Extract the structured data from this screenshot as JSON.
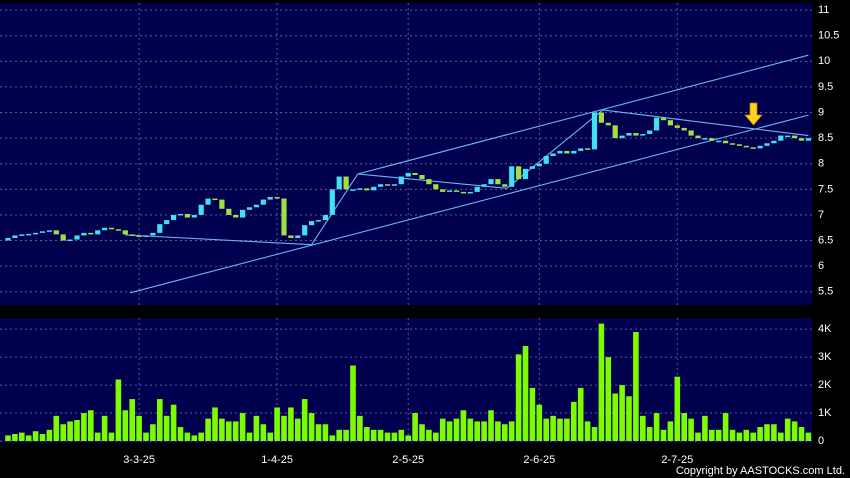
{
  "chart_data": {
    "type": "candlestick",
    "categories": [
      null,
      null,
      null,
      null,
      null,
      null,
      null,
      null,
      null,
      null,
      null,
      null,
      null,
      null,
      null,
      null,
      null,
      null,
      null,
      "3-3-25",
      null,
      null,
      null,
      null,
      null,
      null,
      null,
      null,
      null,
      null,
      null,
      null,
      null,
      null,
      null,
      null,
      null,
      null,
      null,
      "1-4-25",
      null,
      null,
      null,
      null,
      null,
      null,
      null,
      null,
      null,
      null,
      null,
      null,
      null,
      null,
      null,
      null,
      null,
      null,
      "2-5-25",
      null,
      null,
      null,
      null,
      null,
      null,
      null,
      null,
      null,
      null,
      null,
      null,
      null,
      null,
      null,
      null,
      null,
      null,
      "2-6-25",
      null,
      null,
      null,
      null,
      null,
      null,
      null,
      null,
      null,
      null,
      null,
      null,
      null,
      null,
      null,
      null,
      null,
      null,
      null,
      "2-7-25",
      null,
      null,
      null,
      null,
      null,
      null,
      null,
      null,
      null,
      null,
      null,
      null,
      null,
      null,
      null,
      null,
      null,
      null,
      null
    ],
    "open": [
      6.5,
      6.55,
      6.6,
      6.62,
      6.63,
      6.65,
      6.68,
      6.7,
      6.62,
      6.5,
      6.52,
      6.6,
      6.65,
      6.62,
      6.7,
      6.75,
      6.72,
      6.7,
      6.62,
      6.6,
      6.58,
      6.6,
      6.65,
      6.82,
      6.9,
      7.0,
      7.02,
      6.95,
      7.0,
      7.2,
      7.32,
      7.3,
      7.12,
      7.0,
      6.95,
      7.1,
      7.15,
      7.2,
      7.3,
      7.35,
      7.32,
      6.6,
      6.55,
      6.6,
      6.8,
      6.88,
      6.9,
      7.0,
      7.5,
      7.75,
      7.5,
      7.5,
      7.52,
      7.48,
      7.55,
      7.6,
      7.58,
      7.6,
      7.75,
      7.82,
      7.78,
      7.7,
      7.6,
      7.5,
      7.45,
      7.48,
      7.45,
      7.42,
      7.45,
      7.55,
      7.6,
      7.7,
      7.6,
      7.55,
      7.95,
      7.7,
      7.9,
      7.95,
      8.0,
      8.15,
      8.2,
      8.25,
      8.2,
      8.25,
      8.3,
      8.28,
      9.0,
      8.8,
      8.75,
      8.5,
      8.55,
      8.6,
      8.55,
      8.58,
      8.65,
      8.9,
      8.85,
      8.75,
      8.7,
      8.65,
      8.55,
      8.5,
      8.5,
      8.45,
      8.45,
      8.4,
      8.38,
      8.35,
      8.32,
      8.3,
      8.35,
      8.4,
      8.45,
      8.55,
      8.55,
      8.5,
      8.45
    ],
    "close": [
      6.55,
      6.6,
      6.62,
      6.63,
      6.65,
      6.68,
      6.7,
      6.62,
      6.5,
      6.52,
      6.6,
      6.65,
      6.62,
      6.7,
      6.75,
      6.72,
      6.7,
      6.62,
      6.6,
      6.58,
      6.6,
      6.65,
      6.82,
      6.9,
      7.0,
      7.02,
      6.95,
      7.0,
      7.2,
      7.32,
      7.3,
      7.12,
      7.0,
      6.95,
      7.1,
      7.15,
      7.2,
      7.3,
      7.35,
      7.32,
      6.6,
      6.55,
      6.6,
      6.8,
      6.88,
      6.9,
      7.0,
      7.5,
      7.75,
      7.5,
      7.5,
      7.52,
      7.48,
      7.55,
      7.6,
      7.58,
      7.6,
      7.75,
      7.82,
      7.78,
      7.7,
      7.6,
      7.5,
      7.45,
      7.48,
      7.45,
      7.42,
      7.45,
      7.55,
      7.6,
      7.7,
      7.6,
      7.55,
      7.95,
      7.7,
      7.9,
      7.95,
      8.0,
      8.15,
      8.2,
      8.25,
      8.2,
      8.25,
      8.3,
      8.28,
      9.0,
      8.8,
      8.75,
      8.5,
      8.55,
      8.6,
      8.55,
      8.58,
      8.65,
      8.9,
      8.85,
      8.75,
      8.7,
      8.65,
      8.55,
      8.5,
      8.5,
      8.45,
      8.45,
      8.4,
      8.38,
      8.35,
      8.32,
      8.3,
      8.35,
      8.4,
      8.45,
      8.55,
      8.55,
      8.5,
      8.45,
      8.5
    ],
    "up_color": "#40e0f5",
    "down_color": "#a0e040",
    "ylim": [
      5.3,
      11.1
    ],
    "yticks": [
      5.5,
      6,
      6.5,
      7,
      7.5,
      8,
      8.5,
      9,
      9.5,
      10,
      10.5,
      11
    ],
    "grid": true,
    "trendline_color": "#6ab4f5",
    "trendlines": [
      [
        [
          50.7,
          7.8
        ],
        [
          116,
          10.12
        ]
      ],
      [
        [
          17.7,
          5.48
        ],
        [
          116,
          8.95
        ]
      ],
      [
        [
          17,
          6.61
        ],
        [
          44,
          6.42
        ],
        [
          50.7,
          7.8
        ],
        [
          72.3,
          7.52
        ],
        [
          86.2,
          9.05
        ],
        [
          116,
          8.55
        ]
      ]
    ],
    "volume": {
      "color": "#7cfc00",
      "values": [
        0.2,
        0.25,
        0.3,
        0.2,
        0.35,
        0.25,
        0.4,
        0.9,
        0.6,
        0.7,
        0.75,
        1.0,
        1.1,
        0.3,
        0.9,
        0.3,
        2.2,
        1.1,
        1.5,
        0.9,
        0.3,
        0.6,
        1.5,
        0.9,
        1.3,
        0.5,
        0.3,
        0.2,
        0.3,
        0.8,
        1.2,
        0.8,
        0.7,
        0.7,
        1.0,
        0.3,
        0.9,
        0.6,
        0.3,
        1.2,
        0.9,
        1.2,
        0.8,
        1.5,
        1.0,
        0.6,
        0.6,
        0.2,
        0.4,
        0.4,
        2.7,
        0.9,
        0.5,
        0.4,
        0.4,
        0.3,
        0.3,
        0.4,
        0.2,
        1.0,
        0.6,
        0.4,
        0.3,
        0.8,
        0.7,
        0.8,
        1.1,
        0.8,
        0.7,
        0.7,
        1.1,
        0.7,
        0.6,
        0.7,
        3.1,
        3.4,
        1.9,
        1.3,
        0.8,
        0.9,
        0.8,
        0.8,
        1.4,
        1.9,
        0.7,
        0.5,
        4.2,
        3.0,
        1.7,
        2.0,
        1.6,
        3.9,
        0.9,
        0.5,
        1.0,
        0.4,
        0.7,
        2.3,
        1.0,
        0.8,
        0.3,
        0.9,
        0.4,
        0.4,
        1.0,
        0.4,
        0.3,
        0.4,
        0.3,
        0.5,
        0.6,
        0.6,
        0.3,
        0.8,
        0.7,
        0.5,
        0.3
      ],
      "ylim": [
        0,
        4.4
      ],
      "yticks": [
        0,
        {
          "value": 1,
          "label": "1K"
        },
        {
          "value": 2,
          "label": "2K"
        },
        {
          "value": 3,
          "label": "3K"
        },
        {
          "value": 4,
          "label": "4K"
        }
      ]
    },
    "copyright": "Copyright by AASTOCKS.com Ltd."
  }
}
